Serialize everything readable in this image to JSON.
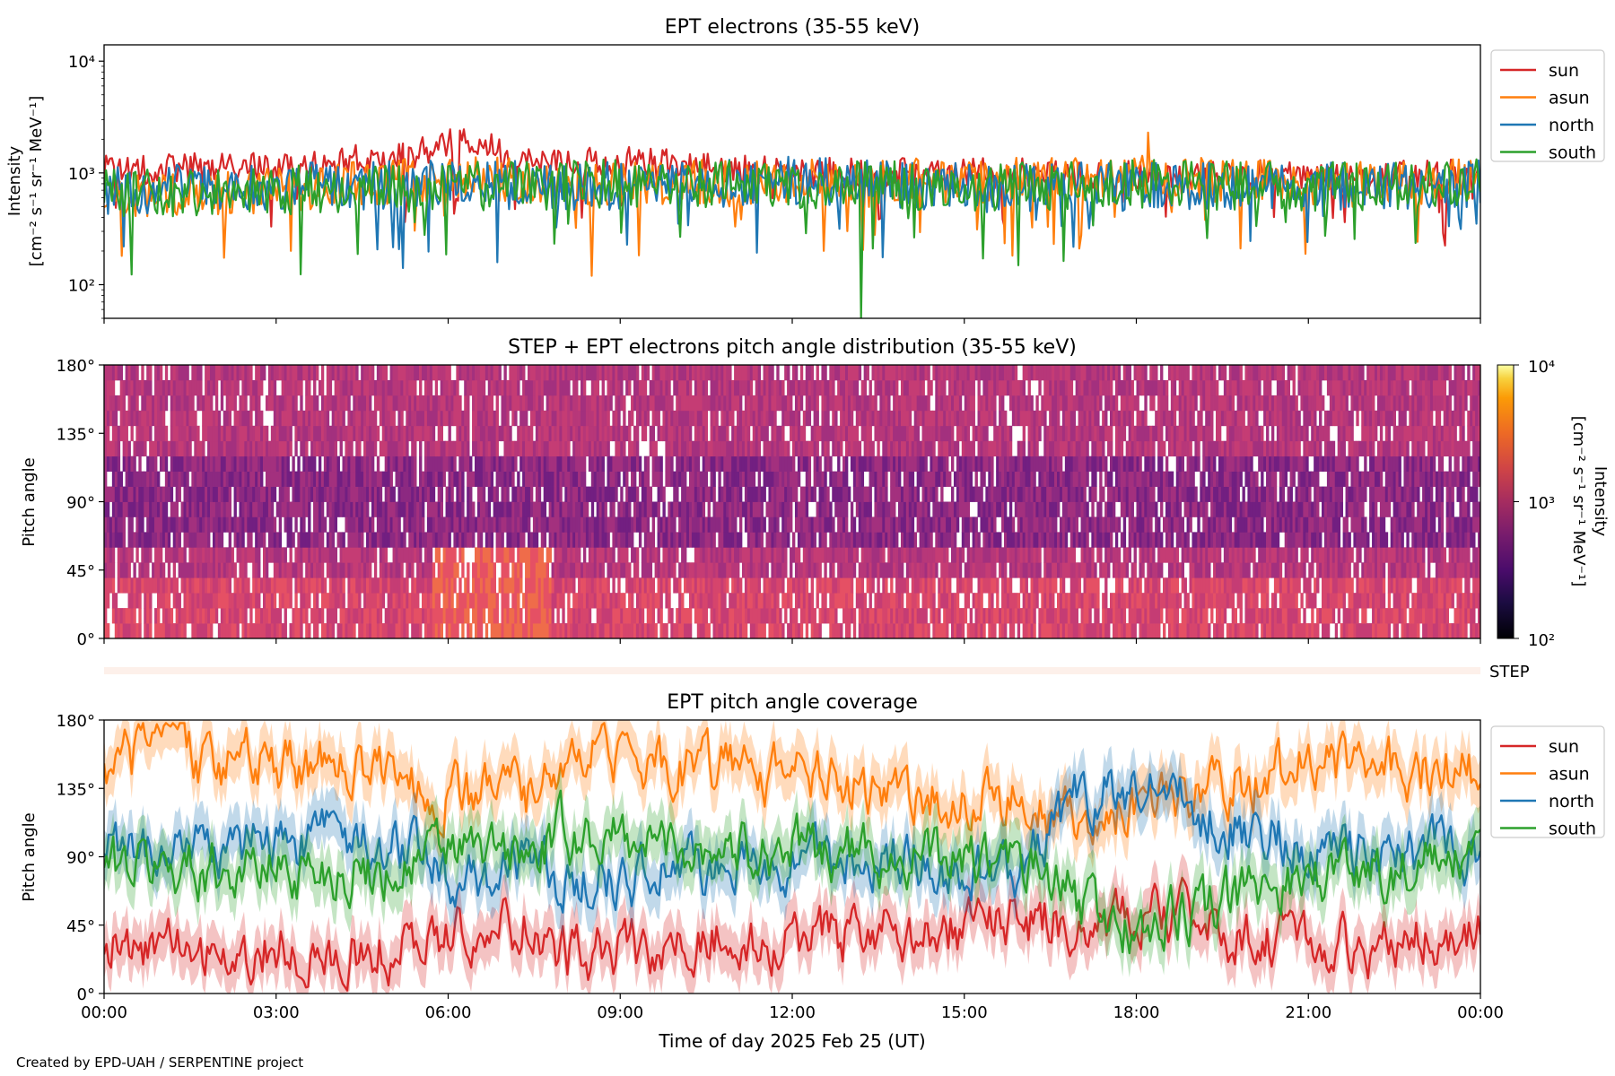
{
  "figure": {
    "footer": "Created by EPD-UAH / SERPENTINE project",
    "xlabel": "Time of day 2025 Feb 25 (UT)",
    "xticks": [
      "00:00",
      "03:00",
      "06:00",
      "09:00",
      "12:00",
      "15:00",
      "18:00",
      "21:00",
      "00:00"
    ],
    "colors": {
      "sun": "#d62728",
      "asun": "#ff7f0e",
      "north": "#1f77b4",
      "south": "#2ca02c"
    }
  },
  "chart_data": [
    {
      "type": "line",
      "title": "EPT electrons (35-55 keV)",
      "ylabel_line1": "Intensity",
      "ylabel_line2": "[cm⁻² s⁻¹ sr⁻¹ MeV⁻¹]",
      "yscale": "log",
      "ylim": [
        50,
        14000
      ],
      "yticks": [
        {
          "value": 100,
          "label": "10²"
        },
        {
          "value": 1000,
          "label": "10³"
        },
        {
          "value": 10000,
          "label": "10⁴"
        }
      ],
      "xlim_hours": [
        0,
        24
      ],
      "legend": "outside-right",
      "series": [
        {
          "name": "sun",
          "color": "#d62728",
          "base": [
            [
              0,
              1050
            ],
            [
              3,
              1150
            ],
            [
              5,
              1350
            ],
            [
              6.2,
              1900
            ],
            [
              7,
              1500
            ],
            [
              8,
              1200
            ],
            [
              9,
              1250
            ],
            [
              12,
              1000
            ],
            [
              15,
              1000
            ],
            [
              18,
              950
            ],
            [
              21,
              950
            ],
            [
              24,
              1000
            ]
          ],
          "spread": 0.14
        },
        {
          "name": "asun",
          "color": "#ff7f0e",
          "base": [
            [
              0,
              600
            ],
            [
              3,
              700
            ],
            [
              6,
              900
            ],
            [
              9,
              800
            ],
            [
              12,
              850
            ],
            [
              15,
              850
            ],
            [
              18,
              900
            ],
            [
              21,
              800
            ],
            [
              24,
              900
            ]
          ],
          "spread": 0.2
        },
        {
          "name": "north",
          "color": "#1f77b4",
          "base": [
            [
              0,
              700
            ],
            [
              3,
              750
            ],
            [
              6,
              800
            ],
            [
              9,
              750
            ],
            [
              12,
              850
            ],
            [
              15,
              750
            ],
            [
              18,
              750
            ],
            [
              21,
              750
            ],
            [
              24,
              800
            ]
          ],
          "spread": 0.22
        },
        {
          "name": "south",
          "color": "#2ca02c",
          "base": [
            [
              0,
              650
            ],
            [
              3,
              700
            ],
            [
              6,
              750
            ],
            [
              9,
              800
            ],
            [
              12,
              800
            ],
            [
              15,
              750
            ],
            [
              18,
              800
            ],
            [
              21,
              750
            ],
            [
              24,
              800
            ]
          ],
          "spread": 0.22
        }
      ],
      "notable_points": [
        {
          "series": "south",
          "hour": 13.2,
          "value": 50
        },
        {
          "series": "asun",
          "hour": 8.5,
          "value": 120
        },
        {
          "series": "asun",
          "hour": 0.6,
          "value": 125
        },
        {
          "series": "asun",
          "hour": 18.2,
          "value": 2300
        }
      ]
    },
    {
      "type": "heatmap",
      "title": "STEP + EPT electrons pitch angle distribution (35-55 keV)",
      "ylabel": "Pitch angle",
      "ylim": [
        0,
        180
      ],
      "yticks": [
        "0°",
        "45°",
        "90°",
        "135°",
        "180°"
      ],
      "colorbar": {
        "label_line1": "Intensity",
        "label_line2": "[cm⁻² s⁻¹ sr⁻¹ MeV⁻¹]",
        "scale": "log",
        "range": [
          100,
          10000
        ],
        "ticks": [
          "10²",
          "10³",
          "10⁴"
        ],
        "colormap": "inferno"
      },
      "step_label": "STEP"
    },
    {
      "type": "line",
      "title": "EPT pitch angle coverage",
      "ylabel": "Pitch angle",
      "ylim": [
        0,
        180
      ],
      "yticks": [
        "0°",
        "45°",
        "90°",
        "135°",
        "180°"
      ],
      "legend": "outside-right",
      "series": [
        {
          "name": "sun",
          "color": "#d62728",
          "center": [
            [
              0,
              30
            ],
            [
              5,
              30
            ],
            [
              6,
              40
            ],
            [
              7.5,
              45
            ],
            [
              8,
              25
            ],
            [
              9.5,
              30
            ],
            [
              12,
              35
            ],
            [
              14,
              40
            ],
            [
              16,
              50
            ],
            [
              17,
              45
            ],
            [
              18,
              55
            ],
            [
              21,
              30
            ],
            [
              24,
              35
            ]
          ]
        },
        {
          "name": "asun",
          "color": "#ff7f0e",
          "center": [
            [
              0,
              155
            ],
            [
              5,
              150
            ],
            [
              6,
              130
            ],
            [
              7.5,
              130
            ],
            [
              8,
              160
            ],
            [
              9.5,
              155
            ],
            [
              12,
              140
            ],
            [
              14,
              130
            ],
            [
              16,
              125
            ],
            [
              17,
              110
            ],
            [
              18,
              125
            ],
            [
              21,
              150
            ],
            [
              24,
              145
            ]
          ]
        },
        {
          "name": "north",
          "color": "#1f77b4",
          "center": [
            [
              0,
              95
            ],
            [
              5,
              100
            ],
            [
              6,
              80
            ],
            [
              7.5,
              85
            ],
            [
              8,
              75
            ],
            [
              9.5,
              80
            ],
            [
              12,
              90
            ],
            [
              14,
              85
            ],
            [
              16,
              80
            ],
            [
              17,
              130
            ],
            [
              18,
              135
            ],
            [
              21,
              95
            ],
            [
              24,
              90
            ]
          ]
        },
        {
          "name": "south",
          "color": "#2ca02c",
          "center": [
            [
              0,
              85
            ],
            [
              5,
              80
            ],
            [
              6,
              95
            ],
            [
              7.5,
              90
            ],
            [
              8,
              105
            ],
            [
              9.5,
              100
            ],
            [
              12,
              95
            ],
            [
              14,
              90
            ],
            [
              16,
              85
            ],
            [
              17,
              60
            ],
            [
              18,
              40
            ],
            [
              21,
              80
            ],
            [
              24,
              85
            ]
          ]
        }
      ]
    }
  ]
}
